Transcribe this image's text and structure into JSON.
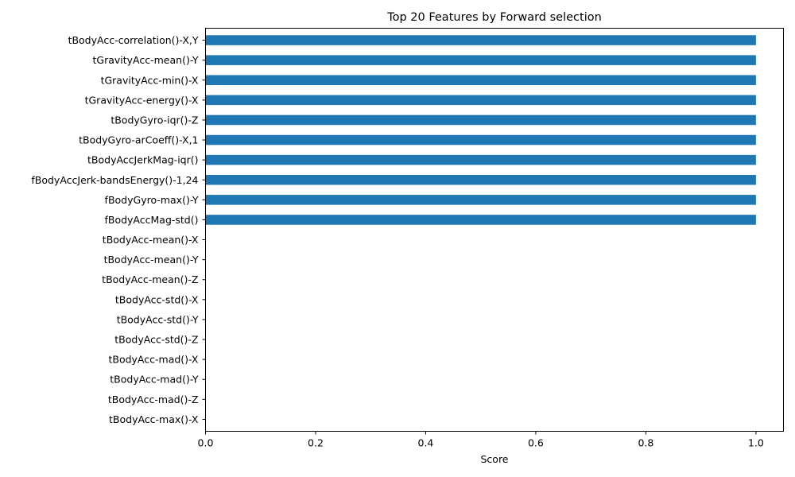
{
  "chart_data": {
    "type": "bar",
    "orientation": "horizontal",
    "title": "Top 20 Features by Forward selection",
    "xlabel": "Score",
    "ylabel": "",
    "xlim": [
      0,
      1.05
    ],
    "xticks": [
      0.0,
      0.2,
      0.4,
      0.6,
      0.8,
      1.0
    ],
    "xtick_labels": [
      "0.0",
      "0.2",
      "0.4",
      "0.6",
      "0.8",
      "1.0"
    ],
    "categories": [
      "tBodyAcc-correlation()-X,Y",
      "tGravityAcc-mean()-Y",
      "tGravityAcc-min()-X",
      "tGravityAcc-energy()-X",
      "tBodyGyro-iqr()-Z",
      "tBodyGyro-arCoeff()-X,1",
      "tBodyAccJerkMag-iqr()",
      "fBodyAccJerk-bandsEnergy()-1,24",
      "fBodyGyro-max()-Y",
      "fBodyAccMag-std()",
      "tBodyAcc-mean()-X",
      "tBodyAcc-mean()-Y",
      "tBodyAcc-mean()-Z",
      "tBodyAcc-std()-X",
      "tBodyAcc-std()-Y",
      "tBodyAcc-std()-Z",
      "tBodyAcc-mad()-X",
      "tBodyAcc-mad()-Y",
      "tBodyAcc-mad()-Z",
      "tBodyAcc-max()-X"
    ],
    "values": [
      1,
      1,
      1,
      1,
      1,
      1,
      1,
      1,
      1,
      1,
      0,
      0,
      0,
      0,
      0,
      0,
      0,
      0,
      0,
      0
    ],
    "bar_color": "#1f77b4",
    "grid": false,
    "legend": false
  }
}
